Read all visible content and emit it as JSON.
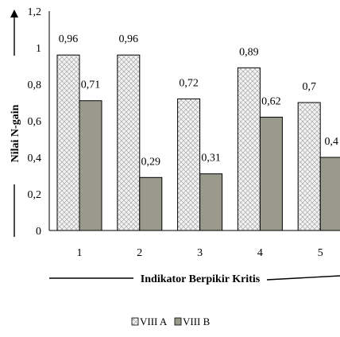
{
  "chart_data": {
    "type": "bar",
    "categories": [
      "1",
      "2",
      "3",
      "4",
      "5"
    ],
    "series": [
      {
        "name": "VIII A",
        "values": [
          0.96,
          0.96,
          0.72,
          0.89,
          0.7
        ],
        "labels": [
          "0,96",
          "0,96",
          "0,72",
          "0,89",
          "0,7"
        ],
        "color": "#e8e8e8"
      },
      {
        "name": "VIII B",
        "values": [
          0.71,
          0.29,
          0.31,
          0.62,
          0.4
        ],
        "labels": [
          "0,71",
          "0,29",
          "0,31",
          "0,62",
          "0,4"
        ],
        "color": "#9a9a8c"
      }
    ],
    "xlabel": "Indikator Berpikir Kritis",
    "ylabel": "Nilai N-gain",
    "ylim": [
      0,
      1.2
    ],
    "yticks": [
      "0",
      "0,2",
      "0,4",
      "0,6",
      "0,8",
      "1",
      "1,2"
    ],
    "grid": false,
    "legend": "bottom"
  }
}
